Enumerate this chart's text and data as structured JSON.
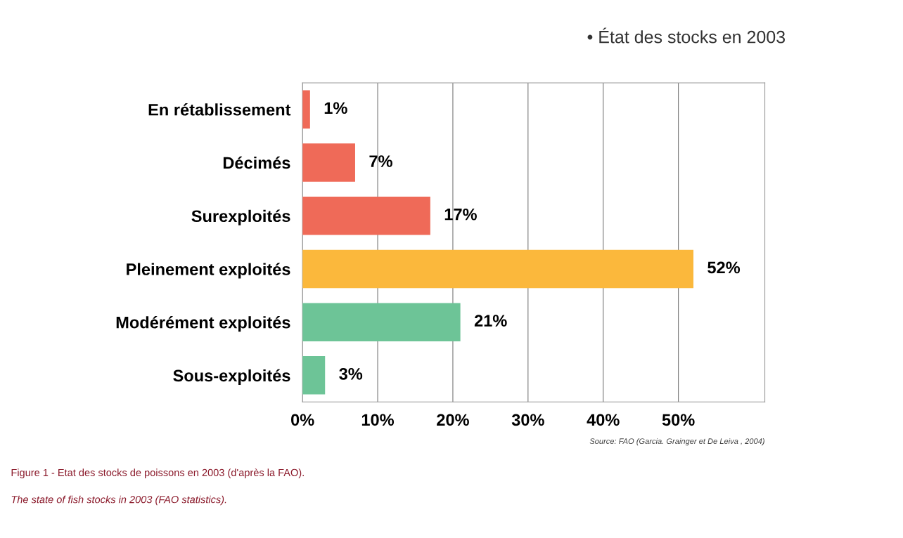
{
  "chart_data": {
    "type": "bar",
    "orientation": "horizontal",
    "title": "• État des stocks en 2003",
    "categories": [
      "En rétablissement",
      "Décimés",
      "Surexploités",
      "Pleinement exploités",
      "Modérément exploités",
      "Sous-exploités"
    ],
    "values": [
      1,
      7,
      17,
      52,
      21,
      3
    ],
    "colors": [
      "#ef6a58",
      "#ef6a58",
      "#ef6a58",
      "#fbb83c",
      "#6dc497",
      "#6dc497"
    ],
    "value_labels": [
      "1%",
      "7%",
      "17%",
      "52%",
      "21%",
      "3%"
    ],
    "xlim": [
      0,
      61.5
    ],
    "xticks": [
      {
        "value": 0,
        "label": "0%"
      },
      {
        "value": 10,
        "label": "10%"
      },
      {
        "value": 20,
        "label": "20%"
      },
      {
        "value": 30,
        "label": "30%"
      },
      {
        "value": 40,
        "label": "40%"
      },
      {
        "value": 50,
        "label": "50%"
      }
    ],
    "grid": "x",
    "annotations": [
      "Source: FAO (Garcia. Grainger et De Leiva , 2004)",
      "Figure 1 - Etat des stocks de poissons en 2003 (d'après la FAO).",
      "The state of fish stocks in 2003 (FAO statistics)."
    ]
  }
}
